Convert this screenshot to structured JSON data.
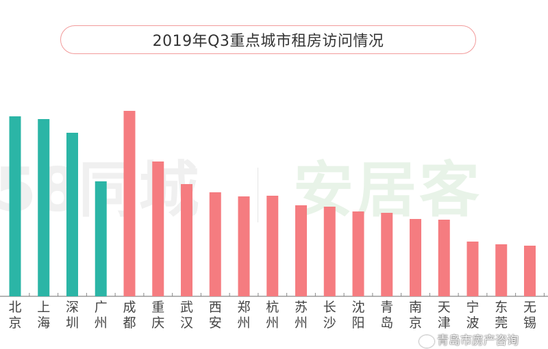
{
  "chart_data": {
    "type": "bar",
    "title": "2019年Q3重点城市租房访问情况",
    "xlabel": "",
    "ylabel": "",
    "y_axis_shown": false,
    "grid": false,
    "categories": [
      [
        "北",
        "京"
      ],
      [
        "上",
        "海"
      ],
      [
        "深",
        "圳"
      ],
      [
        "广",
        "州"
      ],
      [
        "成",
        "都"
      ],
      [
        "重",
        "庆"
      ],
      [
        "武",
        "汉"
      ],
      [
        "西",
        "安"
      ],
      [
        "郑",
        "州"
      ],
      [
        "杭",
        "州"
      ],
      [
        "苏",
        "州"
      ],
      [
        "长",
        "沙"
      ],
      [
        "沈",
        "阳"
      ],
      [
        "青",
        "岛"
      ],
      [
        "南",
        "京"
      ],
      [
        "天",
        "津"
      ],
      [
        "宁",
        "波"
      ],
      [
        "东",
        "莞"
      ],
      [
        "无",
        "锡"
      ]
    ],
    "values": [
      263,
      259,
      239,
      168,
      271,
      197,
      164,
      152,
      146,
      147,
      133,
      131,
      124,
      122,
      113,
      112,
      80,
      76,
      74
    ],
    "values_note_unit": "relative (no axis printed)",
    "colors": {
      "tier1": "#2bb5a6",
      "other": "#f57c80",
      "title_border": "#f29a9a"
    },
    "tier1_count": 4
  },
  "watermark": {
    "left": "58同城",
    "right": "安居客",
    "footer": "青岛市房产咨询",
    "footer_icon": "wechat-icon"
  }
}
